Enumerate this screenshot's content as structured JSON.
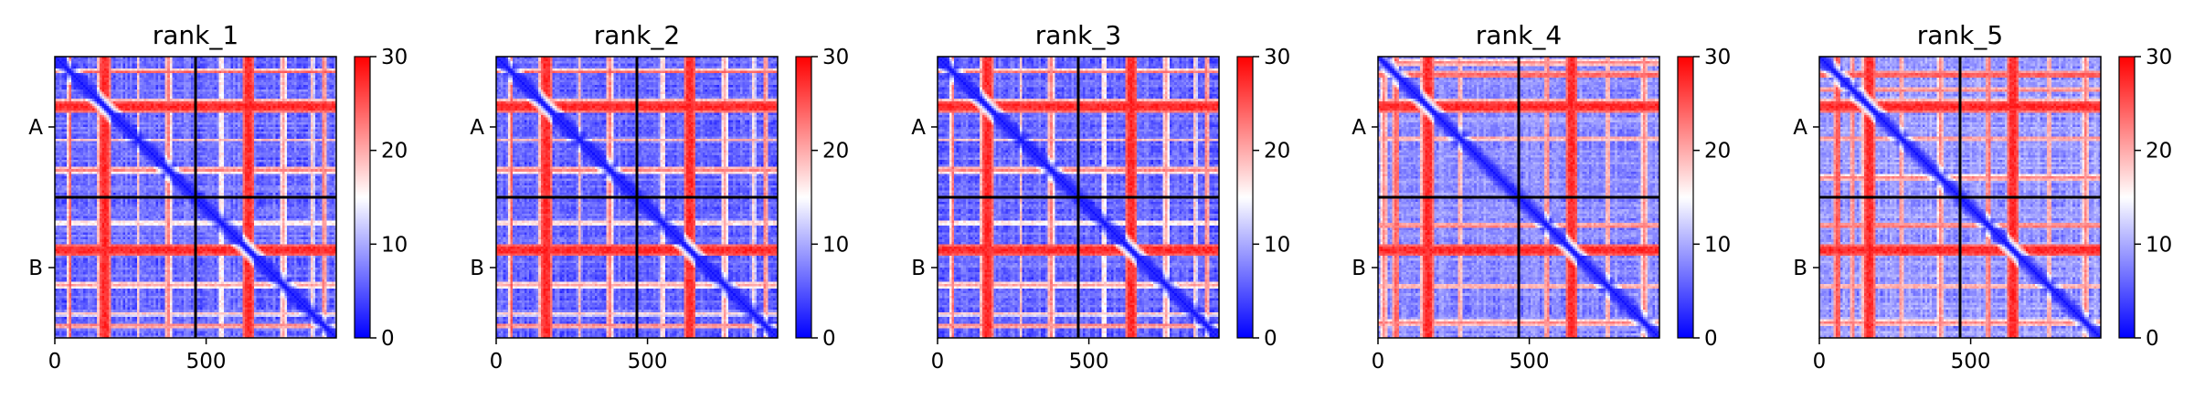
{
  "chart_data": {
    "type": "heatmap",
    "panel_count": 5,
    "panels": [
      {
        "title": "rank_1",
        "x_ticks": [
          0,
          500
        ],
        "x_tick_labels": [
          "0",
          "500"
        ],
        "xlim": [
          0,
          930
        ],
        "y_tick_labels": [
          "A",
          "B"
        ],
        "chain_boundary": 465,
        "chains": [
          {
            "name": "A",
            "start": 0,
            "end": 465
          },
          {
            "name": "B",
            "start": 465,
            "end": 930
          }
        ],
        "high_error_bands": [
          {
            "center": 50,
            "width": 5,
            "value": 26
          },
          {
            "center": 165,
            "width": 14,
            "value": 30
          },
          {
            "center": 275,
            "width": 4,
            "value": 20
          },
          {
            "center": 375,
            "width": 6,
            "value": 24
          },
          {
            "center": 550,
            "width": 4,
            "value": 19
          },
          {
            "center": 640,
            "width": 14,
            "value": 30
          },
          {
            "center": 755,
            "width": 6,
            "value": 22
          },
          {
            "center": 850,
            "width": 4,
            "value": 20
          },
          {
            "center": 890,
            "width": 5,
            "value": 24
          }
        ],
        "background_value": 6,
        "colorbar": {
          "min": 0,
          "max": 30,
          "ticks": [
            0,
            10,
            20,
            30
          ],
          "colormap": "bwr"
        }
      },
      {
        "title": "rank_2",
        "x_ticks": [
          0,
          500
        ],
        "x_tick_labels": [
          "0",
          "500"
        ],
        "xlim": [
          0,
          930
        ],
        "y_tick_labels": [
          "A",
          "B"
        ],
        "chain_boundary": 465,
        "chains": [
          {
            "name": "A",
            "start": 0,
            "end": 465
          },
          {
            "name": "B",
            "start": 465,
            "end": 930
          }
        ],
        "high_error_bands": [
          {
            "center": 50,
            "width": 5,
            "value": 26
          },
          {
            "center": 165,
            "width": 14,
            "value": 30
          },
          {
            "center": 275,
            "width": 4,
            "value": 21
          },
          {
            "center": 375,
            "width": 6,
            "value": 24
          },
          {
            "center": 550,
            "width": 4,
            "value": 20
          },
          {
            "center": 640,
            "width": 14,
            "value": 30
          },
          {
            "center": 755,
            "width": 6,
            "value": 22
          },
          {
            "center": 850,
            "width": 4,
            "value": 19
          },
          {
            "center": 890,
            "width": 5,
            "value": 24
          }
        ],
        "background_value": 6,
        "colorbar": {
          "min": 0,
          "max": 30,
          "ticks": [
            0,
            10,
            20,
            30
          ],
          "colormap": "bwr"
        }
      },
      {
        "title": "rank_3",
        "x_ticks": [
          0,
          500
        ],
        "x_tick_labels": [
          "0",
          "500"
        ],
        "xlim": [
          0,
          930
        ],
        "y_tick_labels": [
          "A",
          "B"
        ],
        "chain_boundary": 465,
        "chains": [
          {
            "name": "A",
            "start": 0,
            "end": 465
          },
          {
            "name": "B",
            "start": 465,
            "end": 930
          }
        ],
        "high_error_bands": [
          {
            "center": 50,
            "width": 5,
            "value": 25
          },
          {
            "center": 165,
            "width": 14,
            "value": 30
          },
          {
            "center": 275,
            "width": 4,
            "value": 20
          },
          {
            "center": 375,
            "width": 6,
            "value": 24
          },
          {
            "center": 550,
            "width": 4,
            "value": 19
          },
          {
            "center": 640,
            "width": 14,
            "value": 30
          },
          {
            "center": 755,
            "width": 6,
            "value": 22
          },
          {
            "center": 850,
            "width": 4,
            "value": 20
          },
          {
            "center": 890,
            "width": 5,
            "value": 24
          }
        ],
        "background_value": 6,
        "colorbar": {
          "min": 0,
          "max": 30,
          "ticks": [
            0,
            10,
            20,
            30
          ],
          "colormap": "bwr"
        }
      },
      {
        "title": "rank_4",
        "x_ticks": [
          0,
          500
        ],
        "x_tick_labels": [
          "0",
          "500"
        ],
        "xlim": [
          0,
          930
        ],
        "y_tick_labels": [
          "A",
          "B"
        ],
        "chain_boundary": 465,
        "chains": [
          {
            "name": "A",
            "start": 0,
            "end": 465
          },
          {
            "name": "B",
            "start": 465,
            "end": 930
          }
        ],
        "high_error_bands": [
          {
            "center": 20,
            "width": 6,
            "value": 24
          },
          {
            "center": 60,
            "width": 8,
            "value": 26
          },
          {
            "center": 165,
            "width": 14,
            "value": 30
          },
          {
            "center": 270,
            "width": 5,
            "value": 22
          },
          {
            "center": 560,
            "width": 6,
            "value": 24
          },
          {
            "center": 640,
            "width": 14,
            "value": 30
          },
          {
            "center": 760,
            "width": 5,
            "value": 22
          },
          {
            "center": 880,
            "width": 6,
            "value": 24
          }
        ],
        "background_value": 8,
        "colorbar": {
          "min": 0,
          "max": 30,
          "ticks": [
            0,
            10,
            20,
            30
          ],
          "colormap": "bwr"
        }
      },
      {
        "title": "rank_5",
        "x_ticks": [
          0,
          500
        ],
        "x_tick_labels": [
          "0",
          "500"
        ],
        "xlim": [
          0,
          930
        ],
        "y_tick_labels": [
          "A",
          "B"
        ],
        "chain_boundary": 465,
        "chains": [
          {
            "name": "A",
            "start": 0,
            "end": 465
          },
          {
            "name": "B",
            "start": 465,
            "end": 930
          }
        ],
        "high_error_bands": [
          {
            "center": 60,
            "width": 8,
            "value": 27
          },
          {
            "center": 110,
            "width": 5,
            "value": 24
          },
          {
            "center": 165,
            "width": 14,
            "value": 30
          },
          {
            "center": 270,
            "width": 5,
            "value": 23
          },
          {
            "center": 400,
            "width": 6,
            "value": 24
          },
          {
            "center": 560,
            "width": 6,
            "value": 25
          },
          {
            "center": 640,
            "width": 14,
            "value": 30
          },
          {
            "center": 760,
            "width": 5,
            "value": 22
          },
          {
            "center": 880,
            "width": 6,
            "value": 24
          }
        ],
        "background_value": 9,
        "colorbar": {
          "min": 0,
          "max": 30,
          "ticks": [
            0,
            10,
            20,
            30
          ],
          "colormap": "bwr"
        }
      }
    ]
  }
}
